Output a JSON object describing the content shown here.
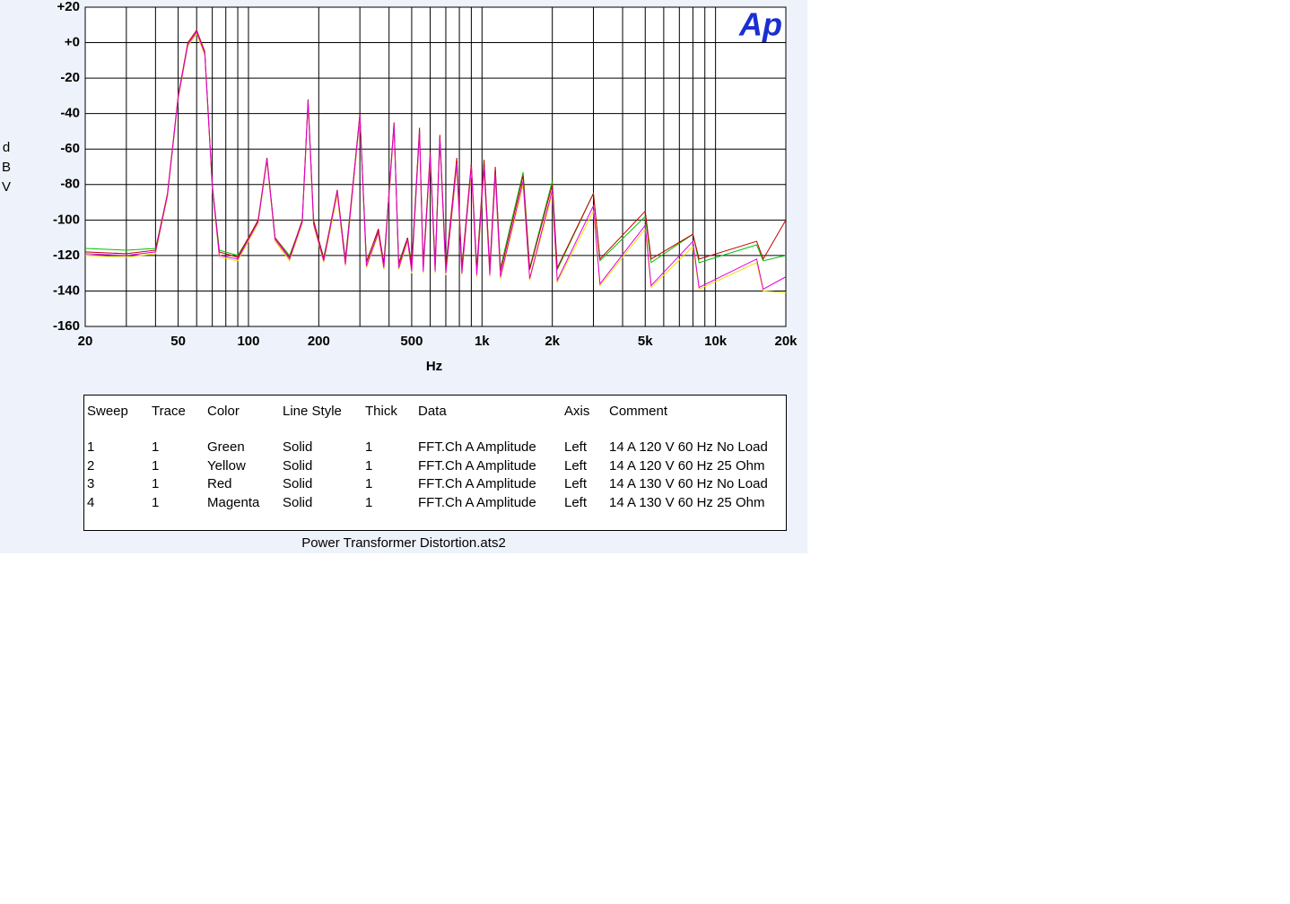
{
  "chart_data": {
    "type": "line",
    "logo": "Ap",
    "xlabel": "Hz",
    "ylabel": "dBV",
    "xscale": "log",
    "grid": true,
    "xlim": [
      20,
      20000
    ],
    "ylim": [
      -160,
      20
    ],
    "xticks": [
      20,
      50,
      100,
      200,
      500,
      {
        "value": 1000,
        "label": "1k"
      },
      {
        "value": 2000,
        "label": "2k"
      },
      {
        "value": 5000,
        "label": "5k"
      },
      {
        "value": 10000,
        "label": "10k"
      },
      {
        "value": 20000,
        "label": "20k"
      }
    ],
    "xminorticks": [
      30,
      40,
      60,
      70,
      80,
      90,
      300,
      400,
      600,
      700,
      800,
      900,
      3000,
      4000,
      6000,
      7000,
      8000,
      9000
    ],
    "yticks": [
      {
        "value": 20,
        "label": "+20"
      },
      {
        "value": 0,
        "label": "+0"
      },
      -20,
      -40,
      -60,
      -80,
      -100,
      -120,
      -140,
      -160
    ],
    "x": [
      20,
      30,
      40,
      45,
      50,
      55,
      60,
      65,
      70,
      75,
      90,
      110,
      120,
      130,
      150,
      170,
      180,
      190,
      210,
      240,
      260,
      300,
      320,
      360,
      380,
      420,
      440,
      480,
      500,
      540,
      560,
      600,
      630,
      660,
      700,
      780,
      820,
      900,
      950,
      1020,
      1080,
      1140,
      1200,
      1500,
      1600,
      2000,
      2100,
      3000,
      3200,
      5000,
      5300,
      8000,
      8500,
      15000,
      16000,
      20000
    ],
    "table_headers": [
      "Sweep",
      "Trace",
      "Color",
      "Line Style",
      "Thick",
      "Data",
      "Axis",
      "Comment"
    ],
    "series": [
      {
        "sweep": 1,
        "trace": 1,
        "color_name": "Green",
        "line_style": "Solid",
        "thick": 1,
        "data": "FFT.Ch A Amplitude",
        "axis_side": "Left",
        "name": "14 A 120 V 60 Hz No Load",
        "color": "#00c000",
        "values": [
          -116,
          -117,
          -116,
          -86,
          -31,
          -1,
          6,
          -6,
          -81,
          -117,
          -120,
          -101,
          -66,
          -110,
          -120,
          -101,
          -34,
          -101,
          -121,
          -85,
          -122,
          -42,
          -123,
          -106,
          -124,
          -47,
          -124,
          -110,
          -125,
          -50,
          -125,
          -64,
          -125,
          -54,
          -126,
          -67,
          -126,
          -70,
          -127,
          -68,
          -127,
          -72,
          -127,
          -73,
          -127,
          -78,
          -128,
          -85,
          -123,
          -98,
          -124,
          -108,
          -124,
          -114,
          -123,
          -120
        ]
      },
      {
        "sweep": 2,
        "trace": 1,
        "color_name": "Yellow",
        "line_style": "Solid",
        "thick": 1,
        "data": "FFT.Ch A Amplitude",
        "axis_side": "Left",
        "name": "14 A 120 V 60 Hz 25 Ohm",
        "color": "#f0e000",
        "values": [
          -120,
          -121,
          -119,
          -87,
          -32,
          -2,
          5,
          -7,
          -82,
          -121,
          -123,
          -102,
          -67,
          -112,
          -123,
          -102,
          -35,
          -103,
          -124,
          -86,
          -126,
          -43,
          -127,
          -108,
          -128,
          -48,
          -128,
          -112,
          -130,
          -52,
          -130,
          -66,
          -130,
          -56,
          -131,
          -70,
          -131,
          -72,
          -132,
          -72,
          -132,
          -76,
          -133,
          -80,
          -134,
          -85,
          -135,
          -95,
          -137,
          -105,
          -138,
          -115,
          -139,
          -124,
          -140,
          -141
        ]
      },
      {
        "sweep": 3,
        "trace": 1,
        "color_name": "Red",
        "line_style": "Solid",
        "thick": 1,
        "data": "FFT.Ch A Amplitude",
        "axis_side": "Left",
        "name": "14 A 130 V 60 Hz No Load",
        "color": "#c00000",
        "values": [
          -118,
          -119,
          -117,
          -85,
          -30,
          0,
          7,
          -5,
          -80,
          -118,
          -121,
          -100,
          -65,
          -110,
          -121,
          -100,
          -32,
          -100,
          -122,
          -83,
          -123,
          -40,
          -124,
          -105,
          -125,
          -45,
          -125,
          -110,
          -126,
          -48,
          -126,
          -62,
          -126,
          -52,
          -127,
          -65,
          -127,
          -68,
          -128,
          -66,
          -128,
          -70,
          -129,
          -75,
          -128,
          -80,
          -127,
          -85,
          -122,
          -95,
          -122,
          -108,
          -122,
          -112,
          -122,
          -100
        ]
      },
      {
        "sweep": 4,
        "trace": 1,
        "color_name": "Magenta",
        "line_style": "Solid",
        "thick": 1,
        "data": "FFT.Ch A Amplitude",
        "axis_side": "Left",
        "name": "14 A 130 V 60 Hz 25 Ohm",
        "color": "#e000e0",
        "values": [
          -119,
          -120,
          -118,
          -86,
          -31,
          -1,
          6,
          -6,
          -81,
          -120,
          -122,
          -101,
          -66,
          -111,
          -122,
          -101,
          -33,
          -102,
          -123,
          -84,
          -125,
          -41,
          -126,
          -107,
          -127,
          -46,
          -127,
          -111,
          -129,
          -50,
          -129,
          -64,
          -129,
          -54,
          -130,
          -68,
          -130,
          -70,
          -131,
          -70,
          -131,
          -74,
          -132,
          -78,
          -133,
          -83,
          -134,
          -92,
          -136,
          -103,
          -137,
          -112,
          -138,
          -122,
          -139,
          -132
        ]
      }
    ],
    "caption": "Power Transformer Distortion.ats2"
  }
}
